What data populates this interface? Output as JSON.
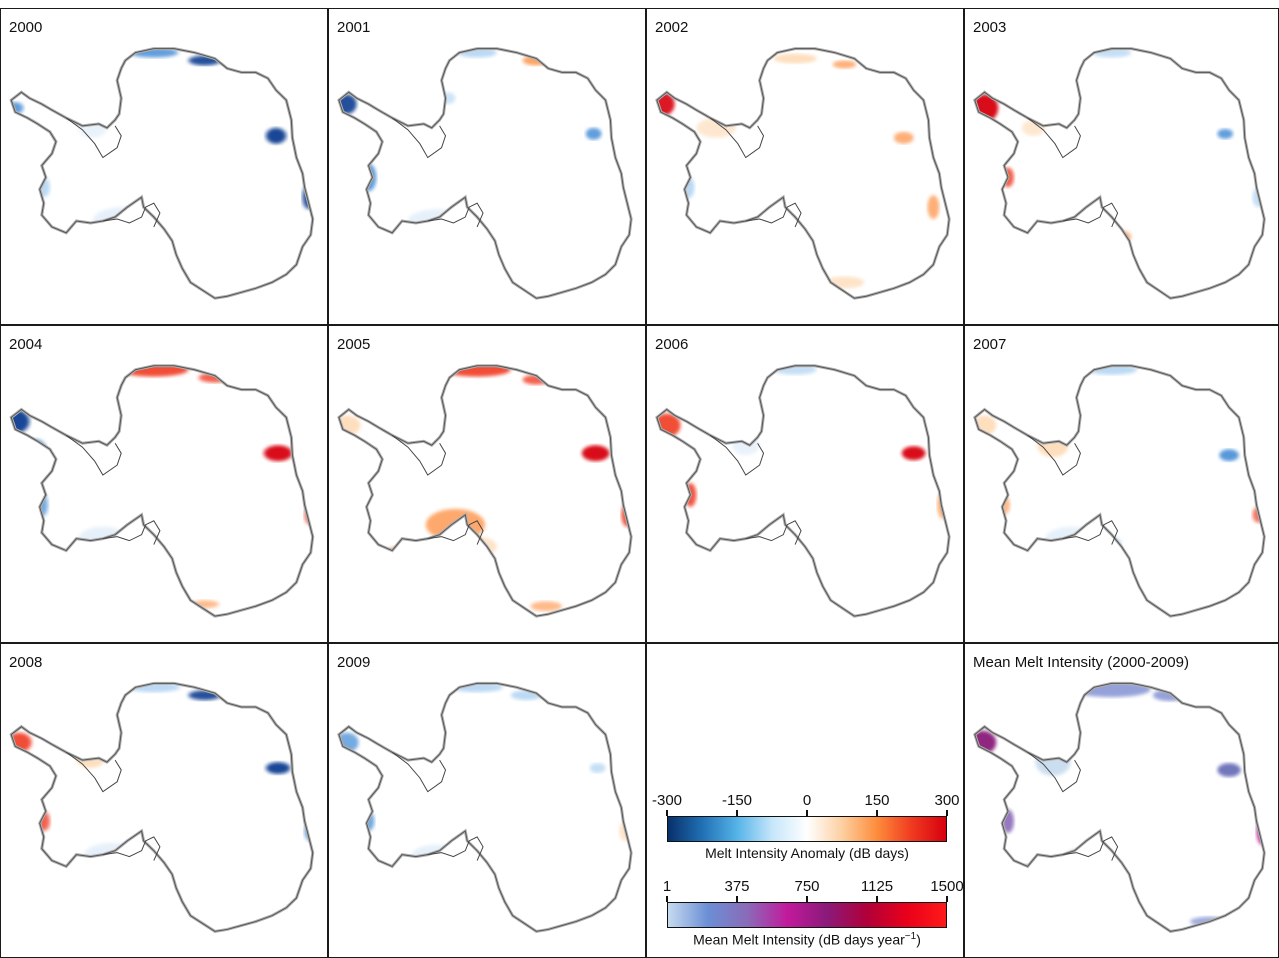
{
  "panels": [
    {
      "label": "2000",
      "type": "anomaly",
      "scheme": "y2000"
    },
    {
      "label": "2001",
      "type": "anomaly",
      "scheme": "y2001"
    },
    {
      "label": "2002",
      "type": "anomaly",
      "scheme": "y2002"
    },
    {
      "label": "2003",
      "type": "anomaly",
      "scheme": "y2003"
    },
    {
      "label": "2004",
      "type": "anomaly",
      "scheme": "y2004"
    },
    {
      "label": "2005",
      "type": "anomaly",
      "scheme": "y2005"
    },
    {
      "label": "2006",
      "type": "anomaly",
      "scheme": "y2006"
    },
    {
      "label": "2007",
      "type": "anomaly",
      "scheme": "y2007"
    },
    {
      "label": "2008",
      "type": "anomaly",
      "scheme": "y2008"
    },
    {
      "label": "2009",
      "type": "anomaly",
      "scheme": "y2009"
    },
    {
      "label": "",
      "type": "legend"
    },
    {
      "label": "Mean Melt Intensity (2000-2009)",
      "type": "mean",
      "scheme": "mean"
    }
  ],
  "legend_anomaly": {
    "ticks": [
      "-300",
      "-150",
      "0",
      "150",
      "300"
    ],
    "title": "Melt Intensity Anomaly (dB days)",
    "colors": [
      "#08306b",
      "#2171b5",
      "#56b4e9",
      "#c6e6fa",
      "#ffffff",
      "#fdd0a2",
      "#fd8d3c",
      "#f03b20",
      "#d7000f"
    ]
  },
  "legend_mean": {
    "ticks": [
      "1",
      "375",
      "750",
      "1125",
      "1500"
    ],
    "title_prefix": "Mean Melt Intensity (dB days year",
    "title_sup": "−1",
    "title_suffix": ")",
    "colors": [
      "#c6dbef",
      "#6b8fd6",
      "#8a6bb8",
      "#c21a9c",
      "#8a1a7a",
      "#b0003a",
      "#e8001a",
      "#ff1a1a"
    ]
  },
  "colors": {
    "coast": "#555555",
    "ice_shelf_edge": "#b0b0b0",
    "border": "#1a1a1a"
  }
}
